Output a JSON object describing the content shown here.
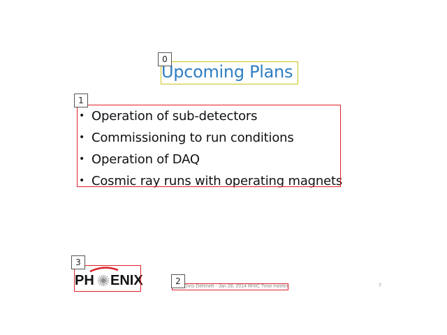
{
  "slide": {
    "title": "Upcoming Plans",
    "bullets": [
      "Operation of sub-detectors",
      "Commissioning to run conditions",
      "Operation of DAQ",
      "Cosmic ray runs with operating magnets"
    ],
    "bullet_glyph": "•",
    "footer": "Chris Dehmelt - Jan 28, 2014 RHIC Time meeting",
    "page_number": "7",
    "logo": {
      "left_text": "PH",
      "right_text": "ENIX",
      "arc_color": "#d8202a",
      "star_color": "#8a8a8a"
    }
  },
  "annotations": {
    "tags": [
      "0",
      "1",
      "2",
      "3"
    ],
    "box_colors": {
      "title": "#c9c41a",
      "others": "#e0202a"
    }
  }
}
